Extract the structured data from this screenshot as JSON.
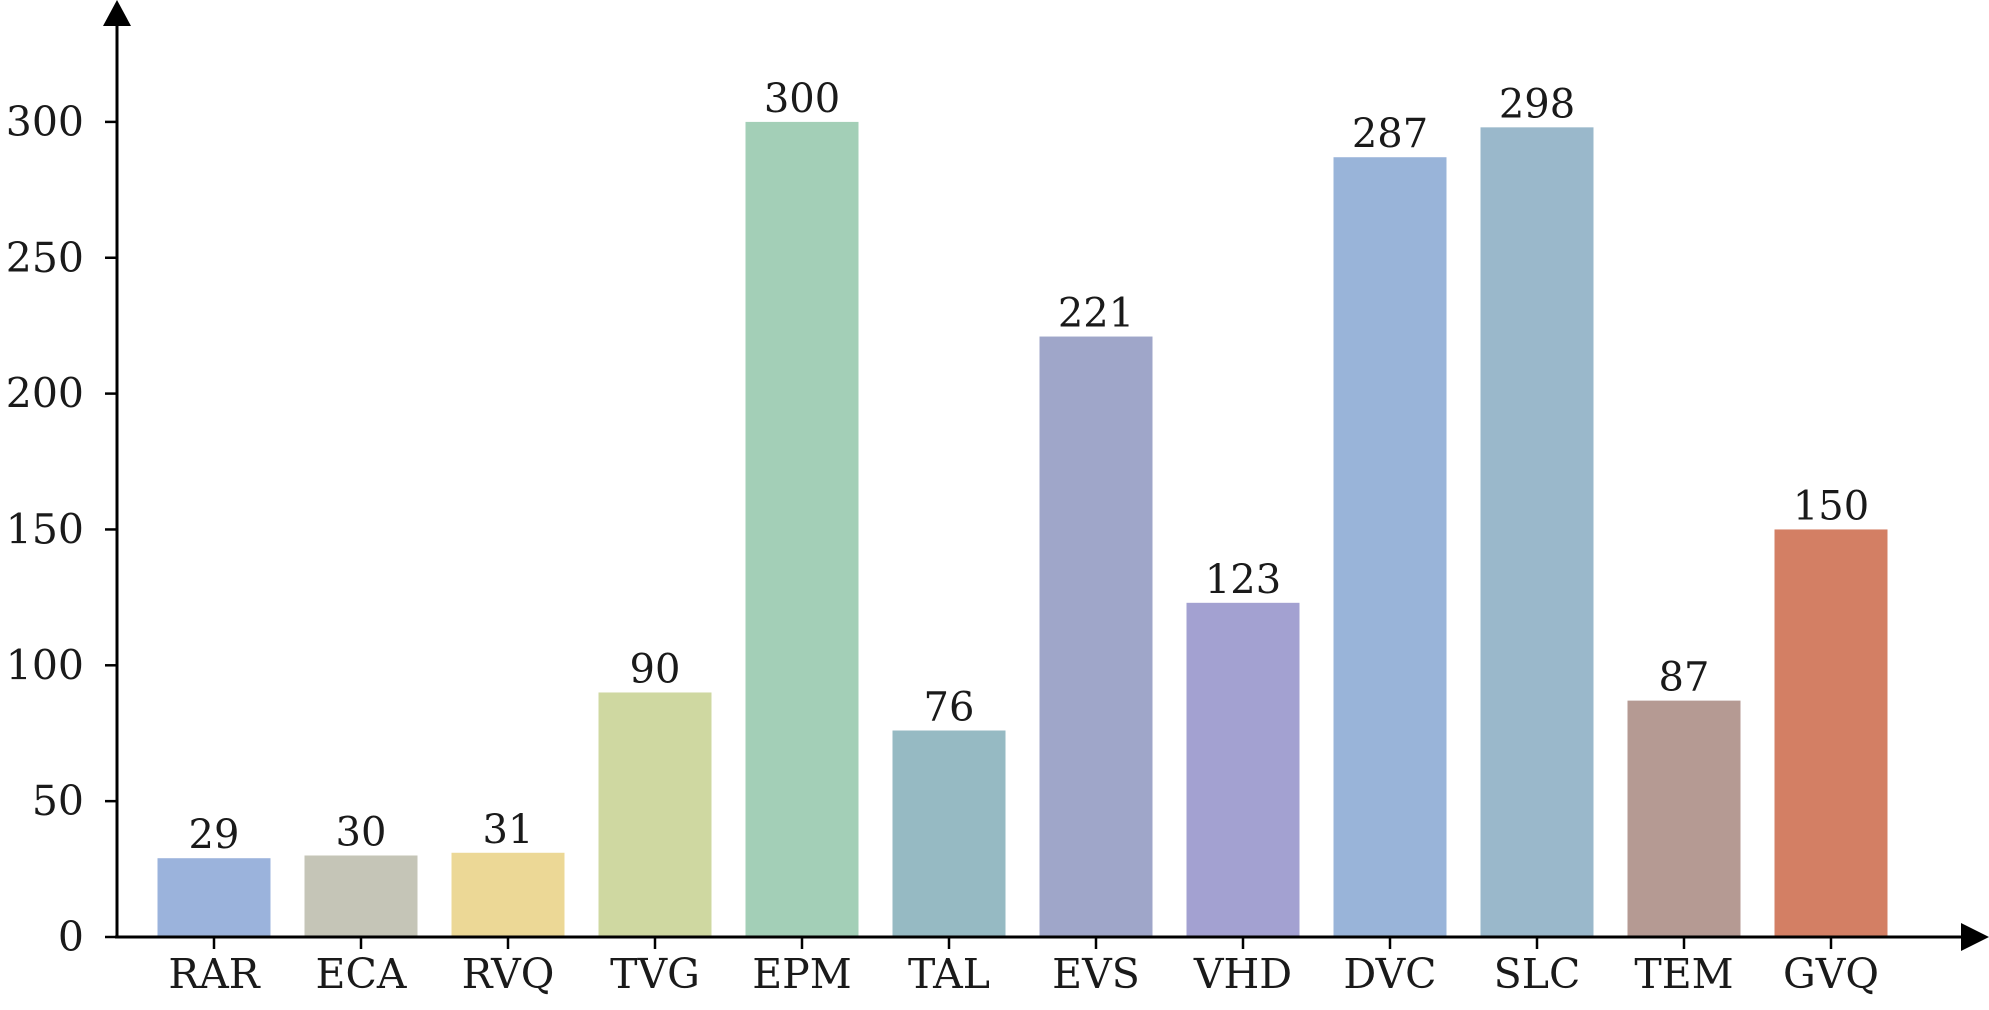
{
  "chart_data": {
    "type": "bar",
    "title": "",
    "xlabel": "",
    "ylabel": "",
    "categories": [
      "RAR",
      "ECA",
      "RVQ",
      "TVG",
      "EPM",
      "TAL",
      "EVS",
      "VHD",
      "DVC",
      "SLC",
      "TEM",
      "GVQ"
    ],
    "values": [
      29,
      30,
      31,
      90,
      300,
      76,
      221,
      123,
      287,
      298,
      87,
      150
    ],
    "colors": [
      "#9bb3dc",
      "#c5c5b7",
      "#ecd896",
      "#cfd8a1",
      "#a3cfb7",
      "#96bac3",
      "#9fa6c9",
      "#a3a1d1",
      "#99b4d9",
      "#9ab8cb",
      "#b59a93",
      "#d37f64"
    ],
    "ylim": [
      0,
      330
    ],
    "yticks": [
      0,
      50,
      100,
      150,
      200,
      250,
      300
    ],
    "grid": false,
    "legend": "none"
  }
}
